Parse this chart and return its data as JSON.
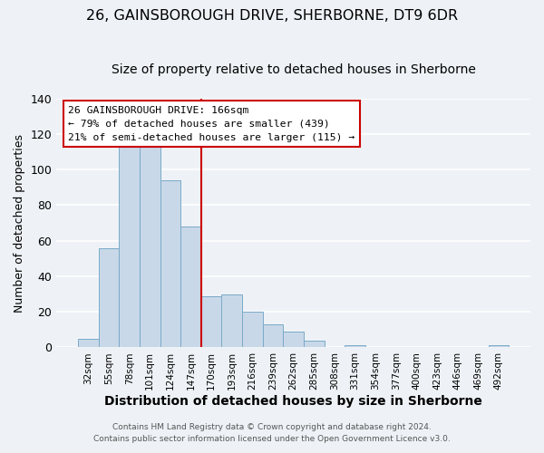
{
  "title": "26, GAINSBOROUGH DRIVE, SHERBORNE, DT9 6DR",
  "subtitle": "Size of property relative to detached houses in Sherborne",
  "xlabel": "Distribution of detached houses by size in Sherborne",
  "ylabel": "Number of detached properties",
  "bar_labels": [
    "32sqm",
    "55sqm",
    "78sqm",
    "101sqm",
    "124sqm",
    "147sqm",
    "170sqm",
    "193sqm",
    "216sqm",
    "239sqm",
    "262sqm",
    "285sqm",
    "308sqm",
    "331sqm",
    "354sqm",
    "377sqm",
    "400sqm",
    "423sqm",
    "446sqm",
    "469sqm",
    "492sqm"
  ],
  "bar_values": [
    5,
    56,
    114,
    115,
    94,
    68,
    29,
    30,
    20,
    13,
    9,
    4,
    0,
    1,
    0,
    0,
    0,
    0,
    0,
    0,
    1
  ],
  "bar_color": "#c8d8e8",
  "bar_edge_color": "#7aaac8",
  "vline_x_idx": 5,
  "vline_color": "#cc0000",
  "ylim": [
    0,
    140
  ],
  "yticks": [
    0,
    20,
    40,
    60,
    80,
    100,
    120,
    140
  ],
  "annotation_line1": "26 GAINSBOROUGH DRIVE: 166sqm",
  "annotation_line2": "← 79% of detached houses are smaller (439)",
  "annotation_line3": "21% of semi-detached houses are larger (115) →",
  "footer_line1": "Contains HM Land Registry data © Crown copyright and database right 2024.",
  "footer_line2": "Contains public sector information licensed under the Open Government Licence v3.0.",
  "bg_color": "#eef2f6",
  "grid_color": "#ffffff",
  "title_fontsize": 11.5,
  "subtitle_fontsize": 10,
  "ylabel_fontsize": 9,
  "xlabel_fontsize": 10
}
